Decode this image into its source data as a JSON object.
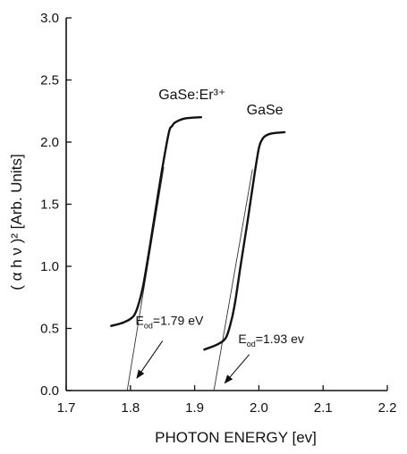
{
  "chart_data": {
    "type": "line",
    "title": "",
    "xlabel": "PHOTON ENERGY [ev]",
    "ylabel": "( α h ν )² [Arb. Units]",
    "xlim": [
      1.7,
      2.2
    ],
    "ylim": [
      0.0,
      3.0
    ],
    "xticks": [
      "1.7",
      "1.8",
      "1.9",
      "2.0",
      "2.1",
      "2.2"
    ],
    "yticks": [
      "0.0",
      "0.5",
      "1.0",
      "1.5",
      "2.0",
      "2.5",
      "3.0"
    ],
    "grid": false,
    "legend": "none",
    "series": [
      {
        "name": "GaSe:Er³⁺",
        "x": [
          1.77,
          1.79,
          1.805,
          1.813,
          1.82,
          1.83,
          1.84,
          1.85,
          1.86,
          1.865,
          1.87,
          1.885,
          1.91
        ],
        "y": [
          0.52,
          0.55,
          0.6,
          0.7,
          0.85,
          1.15,
          1.48,
          1.8,
          2.08,
          2.13,
          2.16,
          2.19,
          2.2
        ]
      },
      {
        "name": "GaSe",
        "x": [
          1.915,
          1.935,
          1.948,
          1.955,
          1.962,
          1.972,
          1.982,
          1.992,
          2.0,
          2.005,
          2.01,
          2.02,
          2.04
        ],
        "y": [
          0.33,
          0.37,
          0.42,
          0.52,
          0.68,
          1.02,
          1.35,
          1.7,
          1.95,
          2.02,
          2.05,
          2.07,
          2.08
        ]
      }
    ],
    "extrapolations": [
      {
        "x": [
          1.795,
          1.852
        ],
        "y": [
          0.0,
          1.8
        ]
      },
      {
        "x": [
          1.93,
          1.99
        ],
        "y": [
          0.0,
          1.78
        ]
      }
    ],
    "annotations": [
      {
        "main": "E",
        "sub": "od",
        "rest": "=1.79 eV",
        "pos": [
          1.808,
          0.53
        ],
        "arrow_from": [
          1.85,
          0.4
        ],
        "arrow_to": [
          1.81,
          0.1
        ]
      },
      {
        "main": "E",
        "sub": "od",
        "rest": "=1.93 ev",
        "pos": [
          1.968,
          0.38
        ],
        "arrow_from": [
          1.985,
          0.29
        ],
        "arrow_to": [
          1.947,
          0.06
        ]
      }
    ]
  }
}
